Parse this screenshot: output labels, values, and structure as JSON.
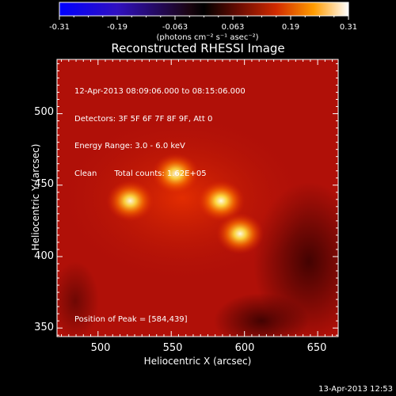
{
  "colorbar": {
    "tick_labels": [
      "-0.31",
      "-0.19",
      "-0.063",
      "0.063",
      "0.19",
      "0.31"
    ],
    "units": "(photons cm⁻² s⁻¹ asec⁻²)",
    "range": [
      -0.31,
      0.31
    ]
  },
  "plot": {
    "title": "Reconstructed RHESSI Image",
    "xlabel": "Heliocentric X (arcsec)",
    "ylabel": "Heliocentric Y (arcsec)",
    "x_ticks": [
      "500",
      "550",
      "600",
      "650"
    ],
    "y_ticks": [
      "350",
      "400",
      "450",
      "500"
    ],
    "xlim": [
      472,
      664
    ],
    "ylim": [
      344,
      538
    ]
  },
  "annotations": {
    "time_range": "12-Apr-2013 08:09:06.000 to 08:15:06.000",
    "detectors": "Detectors: 3F 5F 6F 7F 8F 9F, Att 0",
    "energy": "Energy Range: 3.0 - 6.0 keV",
    "method": "Clean",
    "total_counts": "Total counts: 1.62E+05",
    "peak": "Position of Peak = [584,439]"
  },
  "footer": {
    "timestamp": "13-Apr-2013 12:53"
  },
  "colors": {
    "background": "#000000",
    "text": "#ffffff",
    "image_base": "#b01008"
  },
  "sources": [
    {
      "x": 522,
      "y": 439,
      "intensity": 0.95
    },
    {
      "x": 553,
      "y": 458,
      "intensity": 0.92
    },
    {
      "x": 584,
      "y": 439,
      "intensity": 0.98
    },
    {
      "x": 597,
      "y": 416,
      "intensity": 0.97
    }
  ]
}
